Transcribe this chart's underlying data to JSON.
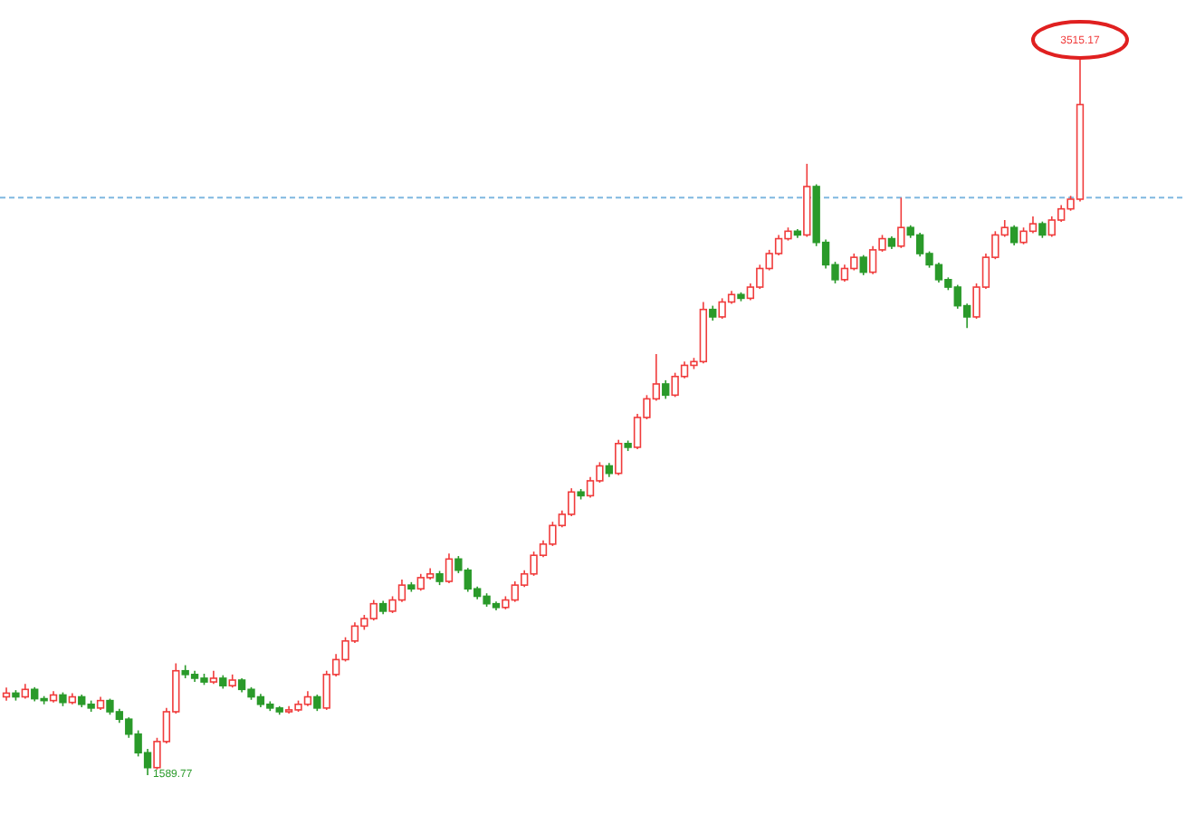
{
  "chart_data": {
    "type": "candlestick",
    "categories": [
      null,
      null,
      null,
      null,
      null,
      null,
      null,
      null,
      null,
      null,
      null,
      null,
      null,
      null,
      null,
      null,
      null,
      null,
      null,
      null,
      null,
      null,
      null,
      null,
      null,
      null,
      null,
      null,
      null,
      null,
      null,
      null,
      null,
      null,
      null,
      null,
      null,
      null,
      null,
      null,
      null,
      null,
      null,
      null,
      null,
      null,
      null,
      null,
      null,
      null,
      null,
      null,
      null,
      null,
      null,
      null,
      null,
      null,
      null,
      null,
      null,
      null,
      null,
      null,
      null,
      null,
      null,
      null,
      null,
      null,
      null,
      null,
      null,
      null,
      null,
      null,
      null,
      null,
      null,
      null,
      null,
      null,
      null,
      null,
      null,
      null,
      null,
      null,
      null,
      null,
      null,
      null,
      null,
      null,
      null,
      null,
      null,
      null,
      null,
      null,
      null,
      null,
      null,
      null,
      null,
      null,
      null,
      null,
      null,
      null,
      null,
      null,
      null,
      null,
      null
    ],
    "ohlc": [
      [
        1800,
        1825,
        1790,
        1810
      ],
      [
        1810,
        1818,
        1790,
        1800
      ],
      [
        1800,
        1835,
        1795,
        1820
      ],
      [
        1820,
        1826,
        1788,
        1795
      ],
      [
        1795,
        1802,
        1780,
        1790
      ],
      [
        1790,
        1815,
        1785,
        1805
      ],
      [
        1805,
        1812,
        1775,
        1785
      ],
      [
        1785,
        1810,
        1780,
        1800
      ],
      [
        1800,
        1806,
        1772,
        1780
      ],
      [
        1780,
        1790,
        1760,
        1770
      ],
      [
        1770,
        1800,
        1765,
        1790
      ],
      [
        1790,
        1795,
        1752,
        1760
      ],
      [
        1760,
        1768,
        1730,
        1740
      ],
      [
        1740,
        1745,
        1690,
        1700
      ],
      [
        1700,
        1710,
        1640,
        1650
      ],
      [
        1650,
        1660,
        1589.77,
        1610
      ],
      [
        1610,
        1690,
        1605,
        1680
      ],
      [
        1680,
        1770,
        1675,
        1760
      ],
      [
        1760,
        1890,
        1755,
        1870
      ],
      [
        1870,
        1885,
        1850,
        1860
      ],
      [
        1860,
        1870,
        1840,
        1850
      ],
      [
        1850,
        1862,
        1832,
        1840
      ],
      [
        1840,
        1870,
        1835,
        1850
      ],
      [
        1850,
        1858,
        1822,
        1830
      ],
      [
        1830,
        1860,
        1825,
        1845
      ],
      [
        1845,
        1850,
        1812,
        1820
      ],
      [
        1820,
        1826,
        1792,
        1800
      ],
      [
        1800,
        1808,
        1772,
        1780
      ],
      [
        1780,
        1788,
        1762,
        1770
      ],
      [
        1770,
        1775,
        1752,
        1760
      ],
      [
        1760,
        1775,
        1755,
        1765
      ],
      [
        1765,
        1790,
        1760,
        1780
      ],
      [
        1780,
        1815,
        1775,
        1800
      ],
      [
        1800,
        1806,
        1762,
        1770
      ],
      [
        1770,
        1870,
        1765,
        1860
      ],
      [
        1860,
        1915,
        1855,
        1900
      ],
      [
        1900,
        1960,
        1895,
        1950
      ],
      [
        1950,
        2000,
        1945,
        1990
      ],
      [
        1990,
        2020,
        1980,
        2010
      ],
      [
        2010,
        2060,
        2005,
        2050
      ],
      [
        2050,
        2058,
        2022,
        2030
      ],
      [
        2030,
        2070,
        2025,
        2060
      ],
      [
        2060,
        2115,
        2055,
        2100
      ],
      [
        2100,
        2108,
        2082,
        2090
      ],
      [
        2090,
        2130,
        2085,
        2120
      ],
      [
        2120,
        2145,
        2115,
        2130
      ],
      [
        2130,
        2138,
        2100,
        2110
      ],
      [
        2110,
        2185,
        2105,
        2170
      ],
      [
        2170,
        2178,
        2132,
        2140
      ],
      [
        2140,
        2146,
        2082,
        2090
      ],
      [
        2090,
        2096,
        2062,
        2070
      ],
      [
        2070,
        2078,
        2042,
        2050
      ],
      [
        2050,
        2056,
        2032,
        2040
      ],
      [
        2040,
        2070,
        2035,
        2060
      ],
      [
        2060,
        2110,
        2055,
        2100
      ],
      [
        2100,
        2140,
        2095,
        2130
      ],
      [
        2130,
        2190,
        2125,
        2180
      ],
      [
        2180,
        2220,
        2175,
        2210
      ],
      [
        2210,
        2270,
        2205,
        2260
      ],
      [
        2260,
        2300,
        2255,
        2290
      ],
      [
        2290,
        2360,
        2285,
        2350
      ],
      [
        2350,
        2358,
        2330,
        2340
      ],
      [
        2340,
        2390,
        2335,
        2380
      ],
      [
        2380,
        2430,
        2375,
        2420
      ],
      [
        2420,
        2428,
        2390,
        2400
      ],
      [
        2400,
        2490,
        2395,
        2480
      ],
      [
        2480,
        2488,
        2460,
        2470
      ],
      [
        2470,
        2560,
        2465,
        2550
      ],
      [
        2550,
        2610,
        2545,
        2600
      ],
      [
        2600,
        2720,
        2595,
        2640
      ],
      [
        2640,
        2650,
        2600,
        2610
      ],
      [
        2610,
        2670,
        2605,
        2660
      ],
      [
        2660,
        2700,
        2655,
        2690
      ],
      [
        2690,
        2710,
        2680,
        2700
      ],
      [
        2700,
        2860,
        2695,
        2840
      ],
      [
        2840,
        2850,
        2810,
        2820
      ],
      [
        2820,
        2870,
        2815,
        2860
      ],
      [
        2860,
        2890,
        2855,
        2880
      ],
      [
        2880,
        2886,
        2862,
        2870
      ],
      [
        2870,
        2910,
        2865,
        2900
      ],
      [
        2900,
        2960,
        2895,
        2950
      ],
      [
        2950,
        3000,
        2945,
        2990
      ],
      [
        2990,
        3040,
        2985,
        3030
      ],
      [
        3030,
        3060,
        3025,
        3050
      ],
      [
        3050,
        3056,
        3032,
        3040
      ],
      [
        3040,
        3231,
        3035,
        3170
      ],
      [
        3170,
        3176,
        3010,
        3020
      ],
      [
        3020,
        3028,
        2950,
        2960
      ],
      [
        2960,
        2968,
        2910,
        2920
      ],
      [
        2920,
        2960,
        2915,
        2950
      ],
      [
        2950,
        2990,
        2945,
        2980
      ],
      [
        2980,
        2986,
        2932,
        2940
      ],
      [
        2940,
        3010,
        2935,
        3000
      ],
      [
        3000,
        3040,
        2995,
        3030
      ],
      [
        3030,
        3036,
        3002,
        3010
      ],
      [
        3010,
        3140,
        3005,
        3060
      ],
      [
        3060,
        3066,
        3032,
        3040
      ],
      [
        3040,
        3046,
        2982,
        2990
      ],
      [
        2990,
        2996,
        2952,
        2960
      ],
      [
        2960,
        2966,
        2912,
        2920
      ],
      [
        2920,
        2926,
        2892,
        2900
      ],
      [
        2900,
        2906,
        2842,
        2850
      ],
      [
        2850,
        2856,
        2790,
        2820
      ],
      [
        2820,
        2910,
        2815,
        2900
      ],
      [
        2900,
        2990,
        2895,
        2980
      ],
      [
        2980,
        3050,
        2975,
        3040
      ],
      [
        3040,
        3080,
        3035,
        3060
      ],
      [
        3060,
        3066,
        3012,
        3020
      ],
      [
        3020,
        3060,
        3015,
        3050
      ],
      [
        3050,
        3090,
        3045,
        3070
      ],
      [
        3070,
        3076,
        3032,
        3040
      ],
      [
        3040,
        3090,
        3035,
        3080
      ],
      [
        3080,
        3120,
        3075,
        3110
      ],
      [
        3110,
        3145,
        3105,
        3136
      ],
      [
        3136,
        3515.17,
        3130,
        3390
      ]
    ],
    "colors": [
      "#f03c3c",
      "#2a9a2a",
      "#f03c3c",
      "#2a9a2a",
      "#2a9a2a",
      "#f03c3c",
      "#2a9a2a",
      "#f03c3c",
      "#2a9a2a",
      "#2a9a2a",
      "#f03c3c",
      "#2a9a2a",
      "#2a9a2a",
      "#2a9a2a",
      "#2a9a2a",
      "#2a9a2a",
      "#f03c3c",
      "#f03c3c",
      "#f03c3c",
      "#2a9a2a",
      "#2a9a2a",
      "#2a9a2a",
      "#f03c3c",
      "#2a9a2a",
      "#f03c3c",
      "#2a9a2a",
      "#2a9a2a",
      "#2a9a2a",
      "#2a9a2a",
      "#2a9a2a",
      "#f03c3c",
      "#f03c3c",
      "#f03c3c",
      "#2a9a2a",
      "#f03c3c",
      "#f03c3c",
      "#f03c3c",
      "#f03c3c",
      "#f03c3c",
      "#f03c3c",
      "#2a9a2a",
      "#f03c3c",
      "#f03c3c",
      "#2a9a2a",
      "#f03c3c",
      "#f03c3c",
      "#2a9a2a",
      "#f03c3c",
      "#2a9a2a",
      "#2a9a2a",
      "#2a9a2a",
      "#2a9a2a",
      "#2a9a2a",
      "#f03c3c",
      "#f03c3c",
      "#f03c3c",
      "#f03c3c",
      "#f03c3c",
      "#f03c3c",
      "#f03c3c",
      "#f03c3c",
      "#2a9a2a",
      "#f03c3c",
      "#f03c3c",
      "#2a9a2a",
      "#f03c3c",
      "#2a9a2a",
      "#f03c3c",
      "#f03c3c",
      "#f03c3c",
      "#2a9a2a",
      "#f03c3c",
      "#f03c3c",
      "#f03c3c",
      "#f03c3c",
      "#2a9a2a",
      "#f03c3c",
      "#f03c3c",
      "#2a9a2a",
      "#f03c3c",
      "#f03c3c",
      "#f03c3c",
      "#f03c3c",
      "#f03c3c",
      "#2a9a2a",
      "#f03c3c",
      "#2a9a2a",
      "#2a9a2a",
      "#2a9a2a",
      "#f03c3c",
      "#f03c3c",
      "#2a9a2a",
      "#f03c3c",
      "#f03c3c",
      "#2a9a2a",
      "#f03c3c",
      "#2a9a2a",
      "#2a9a2a",
      "#2a9a2a",
      "#2a9a2a",
      "#2a9a2a",
      "#2a9a2a",
      "#2a9a2a",
      "#f03c3c",
      "#f03c3c",
      "#f03c3c",
      "#f03c3c",
      "#2a9a2a",
      "#f03c3c",
      "#f03c3c",
      "#2a9a2a",
      "#f03c3c",
      "#f03c3c",
      "#f03c3c",
      "#f03c3c"
    ],
    "ref_lines": [
      {
        "axis": "y",
        "value": 3140,
        "color": "#7fb8e0",
        "line_style": "dashed"
      }
    ],
    "annotations": [
      {
        "text": "3515.17",
        "y": 3515.17
      },
      "1589.77"
    ]
  }
}
